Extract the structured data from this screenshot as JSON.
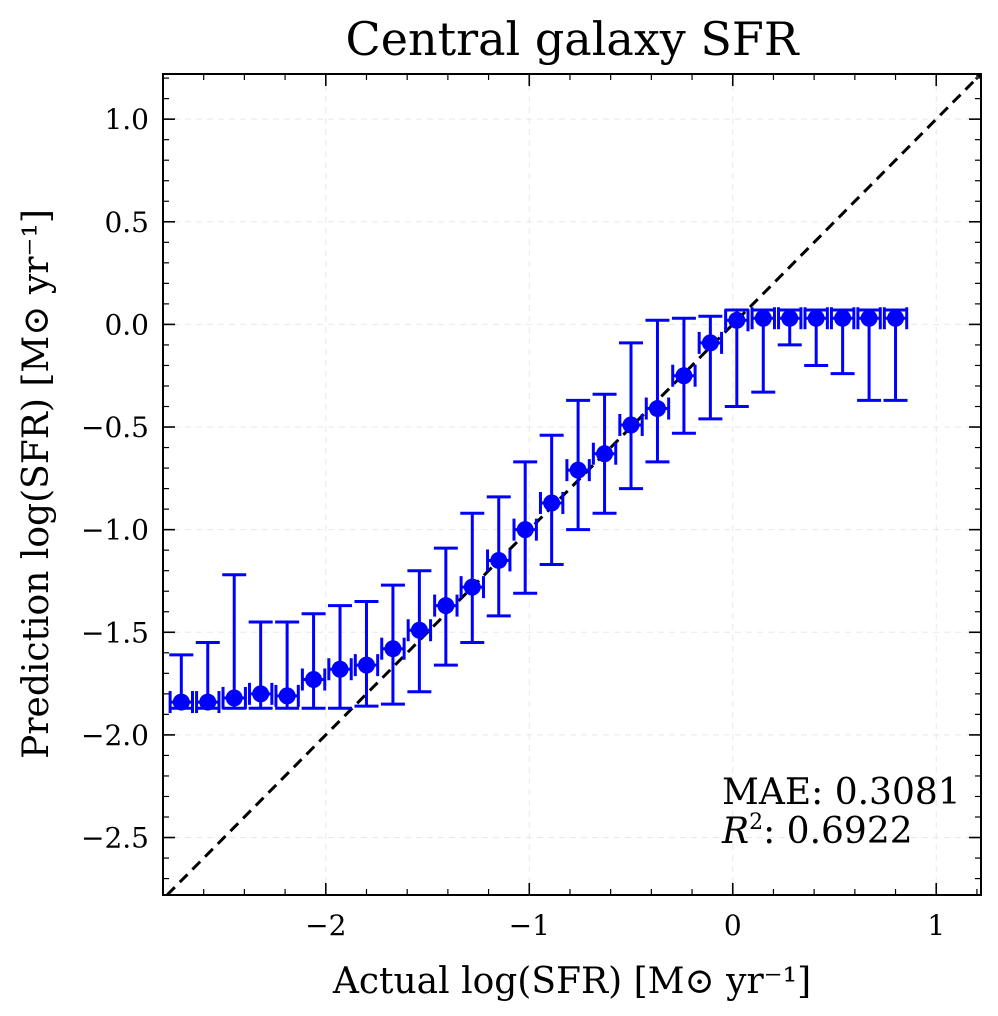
{
  "chart_data": {
    "type": "scatter",
    "title": "Central galaxy SFR",
    "xlabel": "Actual log(SFR) [M⊙ yr⁻¹]",
    "ylabel": "Prediction log(SFR) [M⊙ yr⁻¹]",
    "xlim": [
      -2.8,
      1.22
    ],
    "ylim": [
      -2.78,
      1.22
    ],
    "grid": true,
    "x_ticks": [
      -2,
      -1,
      0,
      1
    ],
    "x_tick_labels": [
      "−2",
      "−1",
      "0",
      "1"
    ],
    "y_ticks": [
      1.0,
      0.5,
      0.0,
      -0.5,
      -1.0,
      -1.5,
      -2.0,
      -2.5
    ],
    "y_tick_labels": [
      "1.0",
      "0.5",
      "0.0",
      "−0.5",
      "−1.0",
      "−1.5",
      "−2.0",
      "−2.5"
    ],
    "x_half_width": 0.055,
    "reference_line": "y = x (dashed)",
    "series": [
      {
        "name": "binned predictions",
        "color": "#0000ff",
        "x": [
          -2.71,
          -2.58,
          -2.45,
          -2.32,
          -2.19,
          -2.06,
          -1.93,
          -1.8,
          -1.67,
          -1.54,
          -1.41,
          -1.28,
          -1.15,
          -1.02,
          -0.89,
          -0.76,
          -0.63,
          -0.5,
          -0.37,
          -0.24,
          -0.11,
          0.02,
          0.15,
          0.28,
          0.41,
          0.54,
          0.67,
          0.8
        ],
        "y": [
          -1.84,
          -1.84,
          -1.82,
          -1.8,
          -1.81,
          -1.73,
          -1.68,
          -1.66,
          -1.58,
          -1.49,
          -1.37,
          -1.28,
          -1.15,
          -1.0,
          -0.87,
          -0.71,
          -0.63,
          -0.49,
          -0.41,
          -0.25,
          -0.09,
          0.02,
          0.03,
          0.03,
          0.03,
          0.03,
          0.03,
          0.03
        ],
        "y_low": [
          -1.87,
          -1.87,
          -1.87,
          -1.87,
          -1.87,
          -1.87,
          -1.87,
          -1.86,
          -1.85,
          -1.79,
          -1.66,
          -1.55,
          -1.42,
          -1.31,
          -1.17,
          -1.0,
          -0.92,
          -0.8,
          -0.67,
          -0.53,
          -0.46,
          -0.4,
          -0.33,
          -0.1,
          -0.2,
          -0.24,
          -0.37,
          -0.37
        ],
        "y_high": [
          -1.61,
          -1.55,
          -1.22,
          -1.45,
          -1.45,
          -1.41,
          -1.37,
          -1.35,
          -1.27,
          -1.2,
          -1.09,
          -0.92,
          -0.84,
          -0.67,
          -0.54,
          -0.37,
          -0.34,
          -0.09,
          0.02,
          0.03,
          0.04,
          0.07,
          0.07,
          0.07,
          0.07,
          0.07,
          0.07,
          0.07
        ]
      }
    ],
    "annotations": {
      "mae_label": "MAE: 0.3081",
      "r2_label": "R",
      "r2_exponent": "2",
      "r2_value": ": 0.6922"
    }
  }
}
